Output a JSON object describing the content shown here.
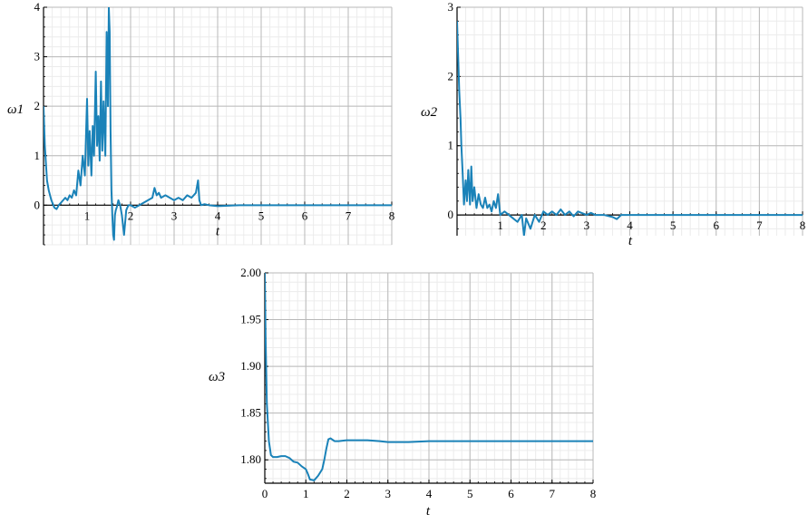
{
  "chart_data": [
    {
      "id": "omega1",
      "type": "line",
      "title": "",
      "xlabel": "t",
      "ylabel": "ω1",
      "xlim": [
        0,
        8
      ],
      "ylim": [
        -0.8,
        4
      ],
      "x_ticks": [
        1,
        2,
        3,
        4,
        5,
        6,
        7,
        8
      ],
      "y_ticks": [
        0,
        1,
        2,
        3,
        4
      ],
      "grid": true,
      "line_color": "#1a82b8",
      "series": [
        {
          "x": [
            0,
            0.03,
            0.08,
            0.12,
            0.18,
            0.25,
            0.3,
            0.35,
            0.4,
            0.45,
            0.5,
            0.55,
            0.6,
            0.65,
            0.7,
            0.75,
            0.8,
            0.85,
            0.9,
            0.95,
            1.0,
            1.03,
            1.06,
            1.1,
            1.13,
            1.16,
            1.2,
            1.23,
            1.26,
            1.29,
            1.32,
            1.35,
            1.38,
            1.42,
            1.45,
            1.48,
            1.5,
            1.52,
            1.54,
            1.56,
            1.58,
            1.6,
            1.62,
            1.64,
            1.66,
            1.68,
            1.72,
            1.76,
            1.8,
            1.85,
            1.9,
            1.95,
            2.0,
            2.1,
            2.2,
            2.3,
            2.4,
            2.5,
            2.55,
            2.6,
            2.65,
            2.7,
            2.8,
            2.9,
            3.0,
            3.1,
            3.2,
            3.3,
            3.4,
            3.5,
            3.55,
            3.58,
            3.62,
            3.7,
            3.8,
            4.0,
            4.5,
            5.0,
            6.0,
            7.0,
            8.0
          ],
          "y": [
            2.0,
            1.2,
            0.5,
            0.3,
            0.1,
            -0.05,
            -0.08,
            0.0,
            0.05,
            0.1,
            0.15,
            0.1,
            0.2,
            0.15,
            0.3,
            0.2,
            0.7,
            0.4,
            1.0,
            0.6,
            2.15,
            0.8,
            1.5,
            0.6,
            1.6,
            1.0,
            2.7,
            1.2,
            1.8,
            0.9,
            2.5,
            1.1,
            2.1,
            1.0,
            3.5,
            2.0,
            4.0,
            3.5,
            1.5,
            0.3,
            -0.2,
            -0.6,
            -0.7,
            -0.2,
            -0.1,
            -0.05,
            0.1,
            0.0,
            -0.2,
            -0.6,
            -0.1,
            0.0,
            0.0,
            -0.05,
            0.0,
            0.05,
            0.1,
            0.15,
            0.35,
            0.2,
            0.25,
            0.15,
            0.2,
            0.15,
            0.1,
            0.15,
            0.1,
            0.2,
            0.15,
            0.25,
            0.5,
            0.1,
            0.0,
            0.02,
            0.0,
            -0.02,
            0.0,
            0.0,
            0.0,
            0.0,
            0.0
          ]
        }
      ]
    },
    {
      "id": "omega2",
      "type": "line",
      "title": "",
      "xlabel": "t",
      "ylabel": "ω2",
      "xlim": [
        0,
        8
      ],
      "ylim": [
        -0.3,
        3
      ],
      "x_ticks": [
        1,
        2,
        3,
        4,
        5,
        6,
        7,
        8
      ],
      "y_ticks": [
        0,
        1,
        2,
        3
      ],
      "grid": true,
      "line_color": "#1a82b8",
      "series": [
        {
          "x": [
            0,
            0.02,
            0.05,
            0.08,
            0.1,
            0.13,
            0.16,
            0.2,
            0.23,
            0.26,
            0.3,
            0.33,
            0.36,
            0.4,
            0.45,
            0.5,
            0.55,
            0.6,
            0.65,
            0.7,
            0.75,
            0.8,
            0.85,
            0.9,
            0.95,
            1.0,
            1.1,
            1.2,
            1.3,
            1.4,
            1.5,
            1.55,
            1.6,
            1.7,
            1.8,
            1.9,
            2.0,
            2.1,
            2.2,
            2.3,
            2.4,
            2.5,
            2.6,
            2.7,
            2.8,
            3.0,
            3.1,
            3.2,
            3.4,
            3.6,
            3.7,
            3.8,
            4.0,
            5.0,
            6.0,
            7.0,
            8.0
          ],
          "y": [
            2.8,
            2.4,
            1.8,
            1.4,
            1.0,
            0.6,
            0.15,
            0.5,
            0.2,
            0.65,
            0.15,
            0.7,
            0.2,
            0.4,
            0.1,
            0.3,
            0.15,
            0.1,
            0.25,
            0.1,
            0.15,
            0.05,
            0.2,
            0.1,
            0.3,
            0.0,
            0.05,
            0.0,
            -0.05,
            -0.1,
            0.0,
            -0.3,
            -0.05,
            -0.2,
            0.0,
            -0.1,
            0.05,
            0.0,
            0.05,
            0.0,
            0.08,
            0.0,
            0.05,
            -0.02,
            0.05,
            0.0,
            0.03,
            0.0,
            0.0,
            -0.03,
            -0.06,
            0.0,
            0.0,
            0.0,
            0.0,
            0.0,
            0.0
          ]
        }
      ]
    },
    {
      "id": "omega3",
      "type": "line",
      "title": "",
      "xlabel": "t",
      "ylabel": "ω3",
      "xlim": [
        0,
        8
      ],
      "ylim": [
        1.775,
        2.0
      ],
      "x_ticks": [
        0,
        1,
        2,
        3,
        4,
        5,
        6,
        7,
        8
      ],
      "y_ticks": [
        "1.80",
        "1.85",
        "1.90",
        "1.95",
        "2.00"
      ],
      "grid": true,
      "line_color": "#1a82b8",
      "series": [
        {
          "x": [
            0,
            0.02,
            0.05,
            0.1,
            0.15,
            0.2,
            0.3,
            0.4,
            0.5,
            0.6,
            0.7,
            0.8,
            0.9,
            1.0,
            1.05,
            1.1,
            1.2,
            1.3,
            1.4,
            1.45,
            1.5,
            1.55,
            1.6,
            1.7,
            1.8,
            2.0,
            2.2,
            2.5,
            2.8,
            3.0,
            3.5,
            4.0,
            5.0,
            6.0,
            7.0,
            8.0
          ],
          "y": [
            2.0,
            1.93,
            1.86,
            1.82,
            1.805,
            1.803,
            1.803,
            1.804,
            1.804,
            1.802,
            1.798,
            1.797,
            1.793,
            1.79,
            1.785,
            1.779,
            1.778,
            1.783,
            1.79,
            1.8,
            1.812,
            1.822,
            1.823,
            1.82,
            1.82,
            1.821,
            1.821,
            1.821,
            1.82,
            1.819,
            1.819,
            1.82,
            1.82,
            1.82,
            1.82,
            1.82
          ]
        }
      ]
    }
  ]
}
